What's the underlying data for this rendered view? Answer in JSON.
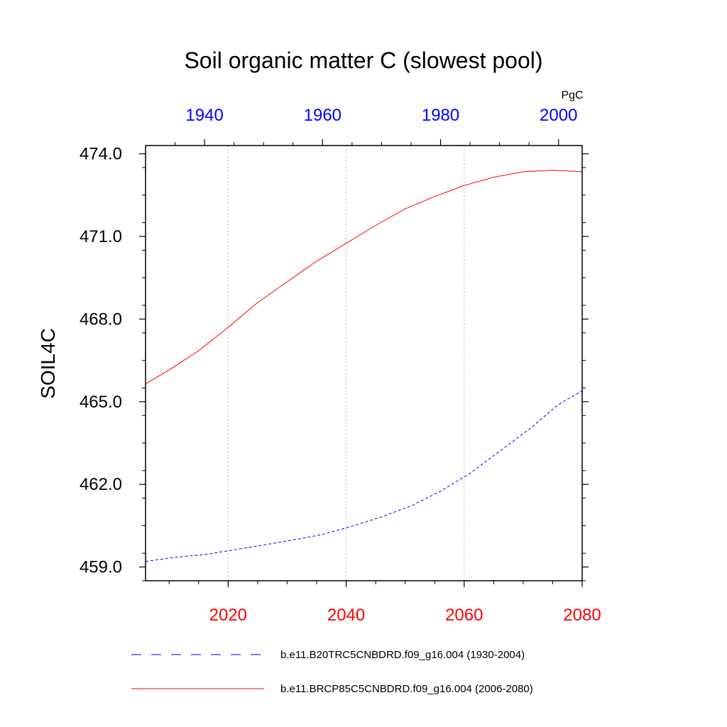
{
  "chart_data": {
    "type": "line",
    "title": "Soil organic matter C (slowest pool)",
    "ylabel": "SOIL4C",
    "units": "PgC",
    "ylim": [
      458.5,
      474.3
    ],
    "yticks": [
      459.0,
      462.0,
      465.0,
      468.0,
      471.0,
      474.0
    ],
    "ytick_labels": [
      "459.0",
      "462.0",
      "465.0",
      "468.0",
      "471.0",
      "474.0"
    ],
    "bottom_axis": {
      "range": [
        2006,
        2080
      ],
      "ticks": [
        2020,
        2040,
        2060,
        2080
      ],
      "labels": [
        "2020",
        "2040",
        "2060",
        "2080"
      ],
      "color": "#ff0000"
    },
    "top_axis": {
      "range": [
        1930,
        2004
      ],
      "ticks": [
        1940,
        1960,
        1980,
        2000
      ],
      "labels": [
        "1940",
        "1960",
        "1980",
        "2000"
      ],
      "color": "#0000ff"
    },
    "grid": "vertical dotted at bottom-axis ticks",
    "series": [
      {
        "name": "b.e11.B20TRC5CNBDRD.f09_g16.004 (1930-2004)",
        "axis": "top",
        "color": "#0000ff",
        "style": "dashed",
        "x": [
          1930,
          1935,
          1940,
          1945,
          1950,
          1955,
          1960,
          1965,
          1970,
          1975,
          1980,
          1985,
          1990,
          1995,
          2000,
          2004
        ],
        "values": [
          459.2,
          459.35,
          459.45,
          459.62,
          459.8,
          459.98,
          460.18,
          460.48,
          460.82,
          461.22,
          461.75,
          462.4,
          463.2,
          464.0,
          464.9,
          465.4
        ]
      },
      {
        "name": "b.e11.BRCP85C5CNBDRD.f09_g16.004 (2006-2080)",
        "axis": "bottom",
        "color": "#ff0000",
        "style": "solid",
        "x": [
          2006,
          2010,
          2015,
          2020,
          2025,
          2030,
          2035,
          2040,
          2045,
          2050,
          2055,
          2060,
          2065,
          2070,
          2075,
          2080
        ],
        "values": [
          465.65,
          466.15,
          466.85,
          467.7,
          468.6,
          469.35,
          470.1,
          470.75,
          471.4,
          472.0,
          472.45,
          472.85,
          473.15,
          473.35,
          473.4,
          473.35
        ]
      }
    ],
    "legend": [
      "b.e11.B20TRC5CNBDRD.f09_g16.004 (1930-2004)",
      "b.e11.BRCP85C5CNBDRD.f09_g16.004 (2006-2080)"
    ]
  }
}
